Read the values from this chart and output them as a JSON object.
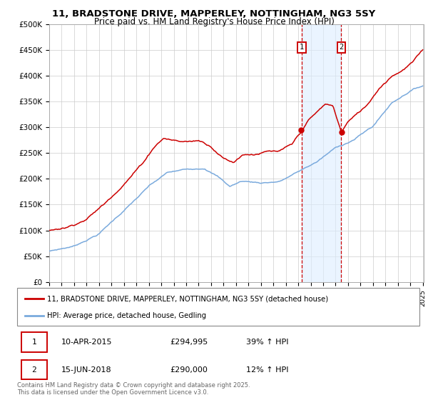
{
  "title1": "11, BRADSTONE DRIVE, MAPPERLEY, NOTTINGHAM, NG3 5SY",
  "title2": "Price paid vs. HM Land Registry's House Price Index (HPI)",
  "legend_line1": "11, BRADSTONE DRIVE, MAPPERLEY, NOTTINGHAM, NG3 5SY (detached house)",
  "legend_line2": "HPI: Average price, detached house, Gedling",
  "annotation1_label": "1",
  "annotation1_date": "10-APR-2015",
  "annotation1_price": "£294,995",
  "annotation1_hpi": "39% ↑ HPI",
  "annotation2_label": "2",
  "annotation2_date": "15-JUN-2018",
  "annotation2_price": "£290,000",
  "annotation2_hpi": "12% ↑ HPI",
  "footnote": "Contains HM Land Registry data © Crown copyright and database right 2025.\nThis data is licensed under the Open Government Licence v3.0.",
  "red_color": "#cc0000",
  "blue_color": "#7aaadd",
  "annotation_fill": "#ddeeff",
  "annotation_border": "#cc0000",
  "ylim_min": 0,
  "ylim_max": 500000,
  "year_start": 1995,
  "year_end": 2025,
  "sale1_year": 2015.27,
  "sale1_price": 294995,
  "sale2_year": 2018.46,
  "sale2_price": 290000
}
